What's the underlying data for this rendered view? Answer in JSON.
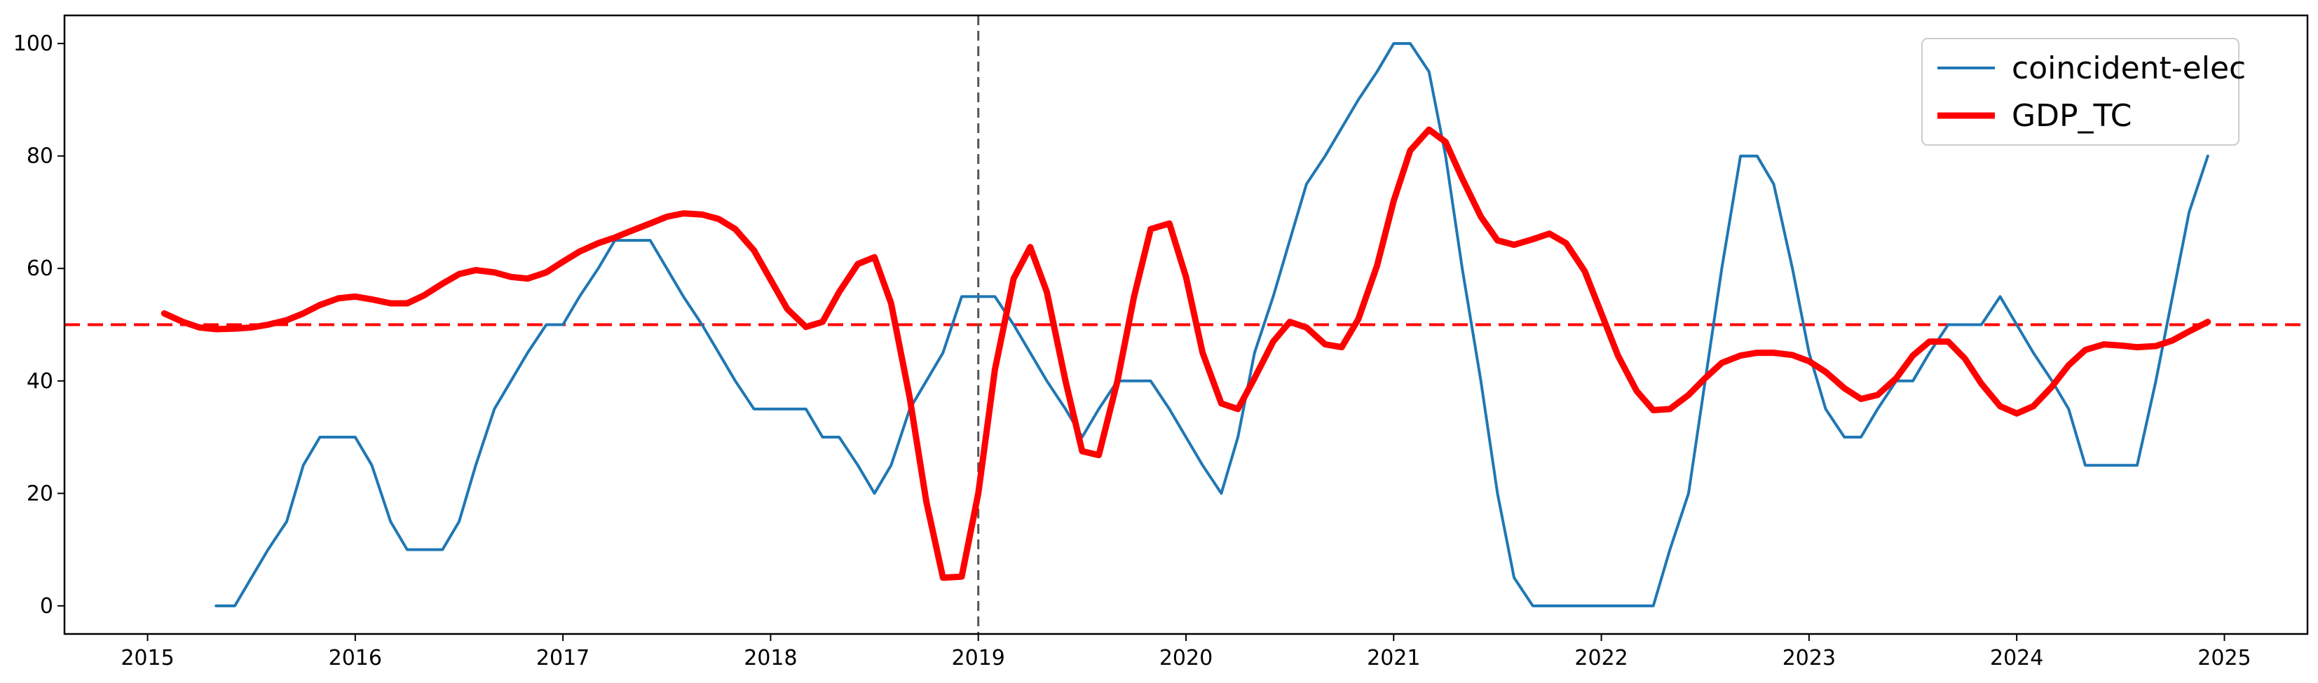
{
  "chart_data": {
    "type": "line",
    "title": "",
    "xlabel": "",
    "ylabel": "",
    "xlim": [
      2014.6,
      2025.4
    ],
    "ylim": [
      -5,
      105
    ],
    "x_ticks": [
      2015,
      2016,
      2017,
      2018,
      2019,
      2020,
      2021,
      2022,
      2023,
      2024,
      2025
    ],
    "x_tick_labels": [
      "2015",
      "2016",
      "2017",
      "2018",
      "2019",
      "2020",
      "2021",
      "2022",
      "2023",
      "2024",
      "2025"
    ],
    "y_ticks": [
      0,
      20,
      40,
      60,
      80,
      100
    ],
    "y_tick_labels": [
      "0",
      "20",
      "40",
      "60",
      "80",
      "100"
    ],
    "grid": false,
    "legend_position": "upper right",
    "reference_lines": [
      {
        "orientation": "horizontal",
        "value": 50,
        "style": "dashed",
        "color": "#ff0000"
      },
      {
        "orientation": "vertical",
        "value": 2019.0,
        "style": "dashed",
        "color": "#555555"
      }
    ],
    "series": [
      {
        "name": "coincident-elec",
        "color": "#1f77b4",
        "x": [
          2015.33,
          2015.42,
          2015.5,
          2015.58,
          2015.67,
          2015.75,
          2015.83,
          2015.92,
          2016.0,
          2016.08,
          2016.17,
          2016.25,
          2016.33,
          2016.42,
          2016.5,
          2016.58,
          2016.67,
          2016.75,
          2016.83,
          2016.92,
          2017.0,
          2017.08,
          2017.17,
          2017.25,
          2017.33,
          2017.42,
          2017.5,
          2017.58,
          2017.67,
          2017.75,
          2017.83,
          2017.92,
          2018.0,
          2018.08,
          2018.17,
          2018.25,
          2018.33,
          2018.42,
          2018.5,
          2018.58,
          2018.67,
          2018.75,
          2018.83,
          2018.92,
          2019.0,
          2019.08,
          2019.17,
          2019.25,
          2019.33,
          2019.42,
          2019.5,
          2019.58,
          2019.67,
          2019.75,
          2019.83,
          2019.92,
          2020.0,
          2020.08,
          2020.17,
          2020.25,
          2020.33,
          2020.42,
          2020.5,
          2020.58,
          2020.67,
          2020.75,
          2020.83,
          2020.92,
          2021.0,
          2021.08,
          2021.17,
          2021.25,
          2021.33,
          2021.42,
          2021.5,
          2021.58,
          2021.67,
          2021.75,
          2021.83,
          2021.92,
          2022.0,
          2022.08,
          2022.17,
          2022.25,
          2022.33,
          2022.42,
          2022.5,
          2022.58,
          2022.67,
          2022.75,
          2022.83,
          2022.92,
          2023.0,
          2023.08,
          2023.17,
          2023.25,
          2023.33,
          2023.42,
          2023.5,
          2023.58,
          2023.67,
          2023.75,
          2023.83,
          2023.92,
          2024.0,
          2024.08,
          2024.17,
          2024.25,
          2024.33,
          2024.42,
          2024.5,
          2024.58,
          2024.67,
          2024.75,
          2024.83,
          2024.92
        ],
        "values": [
          0,
          0,
          5,
          10,
          15,
          25,
          30,
          30,
          30,
          25,
          15,
          10,
          10,
          10,
          15,
          25,
          35,
          40,
          45,
          50,
          50,
          55,
          60,
          65,
          65,
          65,
          60,
          55,
          50,
          45,
          40,
          35,
          35,
          35,
          35,
          30,
          30,
          25,
          20,
          25,
          35,
          40,
          45,
          55,
          55,
          55,
          50,
          45,
          40,
          35,
          30,
          35,
          40,
          40,
          40,
          35,
          30,
          25,
          20,
          30,
          45,
          55,
          65,
          75,
          80,
          85,
          90,
          95,
          100,
          100,
          95,
          80,
          60,
          40,
          20,
          5,
          0,
          0,
          0,
          0,
          0,
          0,
          0,
          0,
          10,
          20,
          40,
          60,
          80,
          80,
          75,
          60,
          45,
          35,
          30,
          30,
          35,
          40,
          40,
          45,
          50,
          50,
          50,
          55,
          50,
          45,
          40,
          35,
          25,
          25,
          25,
          25,
          40,
          55,
          70,
          80
        ]
      },
      {
        "name": "GDP_TC",
        "color": "#ff0000",
        "x": [
          2015.08,
          2015.17,
          2015.25,
          2015.33,
          2015.42,
          2015.5,
          2015.58,
          2015.67,
          2015.75,
          2015.83,
          2015.92,
          2016.0,
          2016.08,
          2016.17,
          2016.25,
          2016.33,
          2016.42,
          2016.5,
          2016.58,
          2016.67,
          2016.75,
          2016.83,
          2016.92,
          2017.0,
          2017.08,
          2017.17,
          2017.25,
          2017.33,
          2017.42,
          2017.5,
          2017.58,
          2017.67,
          2017.75,
          2017.83,
          2017.92,
          2018.0,
          2018.08,
          2018.17,
          2018.25,
          2018.33,
          2018.42,
          2018.5,
          2018.58,
          2018.67,
          2018.75,
          2018.83,
          2018.92,
          2019.0,
          2019.08,
          2019.17,
          2019.25,
          2019.33,
          2019.42,
          2019.5,
          2019.58,
          2019.67,
          2019.75,
          2019.83,
          2019.92,
          2020.0,
          2020.08,
          2020.17,
          2020.25,
          2020.33,
          2020.42,
          2020.5,
          2020.58,
          2020.67,
          2020.75,
          2020.83,
          2020.92,
          2021.0,
          2021.08,
          2021.17,
          2021.25,
          2021.33,
          2021.42,
          2021.5,
          2021.58,
          2021.67,
          2021.75,
          2021.83,
          2021.92,
          2022.0,
          2022.08,
          2022.17,
          2022.25,
          2022.33,
          2022.42,
          2022.5,
          2022.58,
          2022.67,
          2022.75,
          2022.83,
          2022.92,
          2023.0,
          2023.08,
          2023.17,
          2023.25,
          2023.33,
          2023.42,
          2023.5,
          2023.58,
          2023.67,
          2023.75,
          2023.83,
          2023.92,
          2024.0,
          2024.08,
          2024.17,
          2024.25,
          2024.33,
          2024.42,
          2024.5,
          2024.58,
          2024.67,
          2024.75,
          2024.83,
          2024.92
        ],
        "values": [
          52,
          50.5,
          49.5,
          49.2,
          49.3,
          49.5,
          50,
          50.8,
          52,
          53.5,
          54.7,
          55,
          54.5,
          53.8,
          53.8,
          55.2,
          57.3,
          59,
          59.7,
          59.3,
          58.5,
          58.2,
          59.3,
          61.2,
          63,
          64.5,
          65.5,
          66.7,
          68,
          69.2,
          69.8,
          69.6,
          68.8,
          67,
          63.2,
          58,
          52.8,
          49.6,
          50.5,
          55.8,
          60.8,
          62,
          53.8,
          37,
          18.5,
          5,
          5.2,
          20,
          42,
          58.2,
          63.8,
          55.8,
          40,
          27.5,
          26.8,
          40,
          55,
          67,
          68,
          58.5,
          45,
          36,
          35,
          40.5,
          47,
          50.5,
          49.5,
          46.5,
          46,
          51,
          60.5,
          72,
          81,
          84.7,
          82.5,
          76,
          69.2,
          65,
          64.2,
          65.2,
          66.2,
          64.5,
          59.5,
          52,
          44.5,
          38.2,
          34.8,
          35,
          37.5,
          40.5,
          43.2,
          44.5,
          45,
          45,
          44.6,
          43.5,
          41.6,
          38.7,
          36.8,
          37.5,
          40.5,
          44.5,
          47,
          47,
          44,
          39.5,
          35.5,
          34.2,
          35.5,
          39,
          42.8,
          45.5,
          46.5,
          46.3,
          46,
          46.2,
          47.2,
          48.8,
          50.5
        ]
      }
    ]
  }
}
